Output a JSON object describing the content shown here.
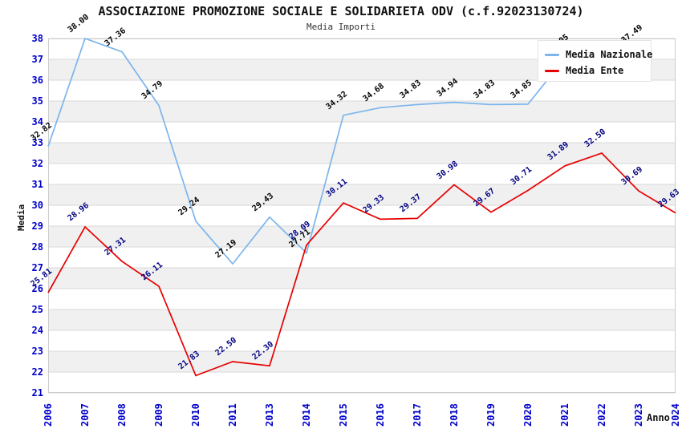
{
  "header": {
    "title": "ASSOCIAZIONE PROMOZIONE SOCIALE E SOLIDARIETA ODV (c.f.92023130724)",
    "subtitle": "Media Importi"
  },
  "axes": {
    "y_title": "Media",
    "x_title": "Anno",
    "y_ticks": [
      38,
      37,
      36,
      35,
      34,
      33,
      32,
      31,
      30,
      29,
      28,
      27,
      26,
      25,
      24,
      23,
      22,
      21
    ],
    "tick_color": "#0000cc"
  },
  "chart_data": {
    "type": "line",
    "title": "ASSOCIAZIONE PROMOZIONE SOCIALE E SOLIDARIETA ODV (c.f.92023130724)",
    "subtitle": "Media Importi",
    "xlabel": "Anno",
    "ylabel": "Media",
    "ylim": [
      21,
      38
    ],
    "grid": "horizontal",
    "band_color": "#f0f0f0",
    "grid_color": "#d8d8d8",
    "border_color": "#cccccc",
    "legend_position": "top-right",
    "categories": [
      "2006",
      "2007",
      "2008",
      "2009",
      "2010",
      "2011",
      "2013",
      "2014",
      "2015",
      "2016",
      "2017",
      "2018",
      "2019",
      "2020",
      "2021",
      "2022",
      "2023",
      "2024"
    ],
    "series": [
      {
        "name": "Media Nazionale",
        "color": "#7cb5ec",
        "label_color": "#000000",
        "values": [
          32.82,
          38.0,
          37.36,
          34.79,
          29.24,
          27.19,
          29.43,
          27.71,
          34.32,
          34.68,
          34.83,
          34.94,
          34.83,
          34.85,
          37.05,
          null,
          37.49,
          null
        ]
      },
      {
        "name": "Media Ente",
        "color": "#e60000",
        "label_color": "#000080",
        "values": [
          25.81,
          28.96,
          27.31,
          26.11,
          21.83,
          22.5,
          22.3,
          28.09,
          30.11,
          29.33,
          29.37,
          30.98,
          29.67,
          30.71,
          31.89,
          32.5,
          30.69,
          29.63
        ]
      }
    ]
  }
}
